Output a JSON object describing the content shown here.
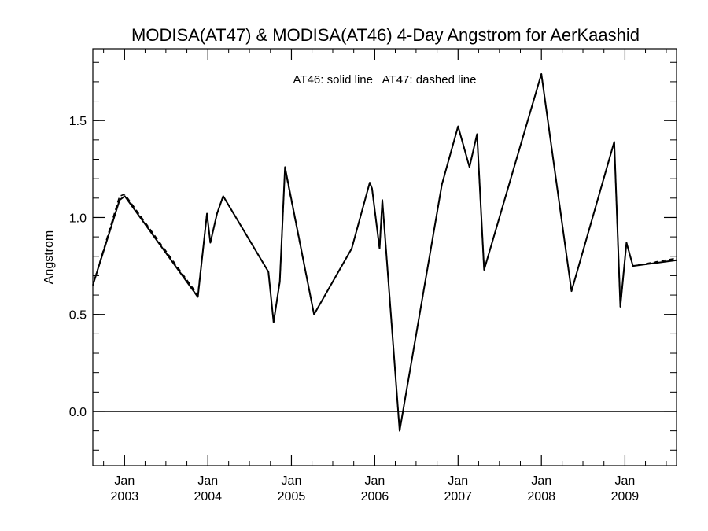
{
  "chart_data": {
    "type": "line",
    "title": "MODISA(AT47) & MODISA(AT46) 4-Day Angstrom for AerKaashid",
    "annotation": "AT46: solid line   AT47: dashed line",
    "xlabel": "",
    "ylabel": "Angstrom",
    "xlim": [
      "2002-08-15",
      "2009-08-15"
    ],
    "ylim": [
      -0.28,
      1.87
    ],
    "yticks": [
      {
        "value": 0.0,
        "label": "0.0"
      },
      {
        "value": 0.5,
        "label": "0.5"
      },
      {
        "value": 1.0,
        "label": "1.0"
      },
      {
        "value": 1.5,
        "label": "1.5"
      }
    ],
    "xticks": [
      {
        "date": "2003-01-01",
        "month": "Jan",
        "year": "2003"
      },
      {
        "date": "2004-01-01",
        "month": "Jan",
        "year": "2004"
      },
      {
        "date": "2005-01-01",
        "month": "Jan",
        "year": "2005"
      },
      {
        "date": "2006-01-01",
        "month": "Jan",
        "year": "2006"
      },
      {
        "date": "2007-01-01",
        "month": "Jan",
        "year": "2007"
      },
      {
        "date": "2008-01-01",
        "month": "Jan",
        "year": "2008"
      },
      {
        "date": "2009-01-01",
        "month": "Jan",
        "year": "2009"
      }
    ],
    "reference_line": 0.0,
    "series": [
      {
        "name": "AT46",
        "style": "solid",
        "color": "#000000",
        "points": [
          [
            "2002-08-15",
            0.65
          ],
          [
            "2002-12-10",
            1.09
          ],
          [
            "2003-01-02",
            1.11
          ],
          [
            "2003-11-18",
            0.59
          ],
          [
            "2003-12-28",
            1.02
          ],
          [
            "2004-01-12",
            0.87
          ],
          [
            "2004-02-10",
            1.02
          ],
          [
            "2004-03-08",
            1.11
          ],
          [
            "2004-09-22",
            0.72
          ],
          [
            "2004-10-15",
            0.46
          ],
          [
            "2004-11-11",
            0.67
          ],
          [
            "2004-12-04",
            1.26
          ],
          [
            "2005-04-10",
            0.5
          ],
          [
            "2005-09-22",
            0.84
          ],
          [
            "2005-12-10",
            1.18
          ],
          [
            "2005-12-20",
            1.15
          ],
          [
            "2006-01-22",
            0.84
          ],
          [
            "2006-02-03",
            1.09
          ],
          [
            "2006-04-20",
            -0.1
          ],
          [
            "2006-10-22",
            1.17
          ],
          [
            "2007-01-01",
            1.47
          ],
          [
            "2007-02-20",
            1.26
          ],
          [
            "2007-03-25",
            1.43
          ],
          [
            "2007-04-25",
            0.73
          ],
          [
            "2008-01-01",
            1.74
          ],
          [
            "2008-05-12",
            0.62
          ],
          [
            "2008-11-15",
            1.39
          ],
          [
            "2008-12-12",
            0.54
          ],
          [
            "2009-01-08",
            0.87
          ],
          [
            "2009-02-05",
            0.75
          ],
          [
            "2009-08-15",
            0.78
          ]
        ]
      },
      {
        "name": "AT47",
        "style": "dashed",
        "color": "#000000",
        "points": [
          [
            "2002-08-15",
            0.65
          ],
          [
            "2002-12-10",
            1.11
          ],
          [
            "2003-01-02",
            1.12
          ],
          [
            "2003-11-18",
            0.6
          ],
          [
            "2003-12-28",
            1.02
          ],
          [
            "2004-01-12",
            0.87
          ],
          [
            "2004-02-10",
            1.02
          ],
          [
            "2004-03-08",
            1.11
          ],
          [
            "2004-09-22",
            0.72
          ],
          [
            "2004-10-15",
            0.46
          ],
          [
            "2004-11-11",
            0.67
          ],
          [
            "2004-12-04",
            1.25
          ],
          [
            "2005-04-10",
            0.5
          ],
          [
            "2005-09-22",
            0.84
          ],
          [
            "2005-12-10",
            1.18
          ],
          [
            "2005-12-20",
            1.15
          ],
          [
            "2006-01-22",
            0.84
          ],
          [
            "2006-02-03",
            1.09
          ],
          [
            "2006-04-20",
            -0.1
          ],
          [
            "2006-10-22",
            1.17
          ],
          [
            "2007-01-01",
            1.47
          ],
          [
            "2007-02-20",
            1.26
          ],
          [
            "2007-03-25",
            1.43
          ],
          [
            "2007-04-25",
            0.73
          ],
          [
            "2008-01-01",
            1.74
          ],
          [
            "2008-05-12",
            0.62
          ],
          [
            "2008-11-15",
            1.39
          ],
          [
            "2008-12-12",
            0.54
          ],
          [
            "2009-01-08",
            0.87
          ],
          [
            "2009-02-05",
            0.75
          ],
          [
            "2009-08-15",
            0.79
          ]
        ]
      }
    ],
    "grid": false,
    "legend": "none"
  }
}
